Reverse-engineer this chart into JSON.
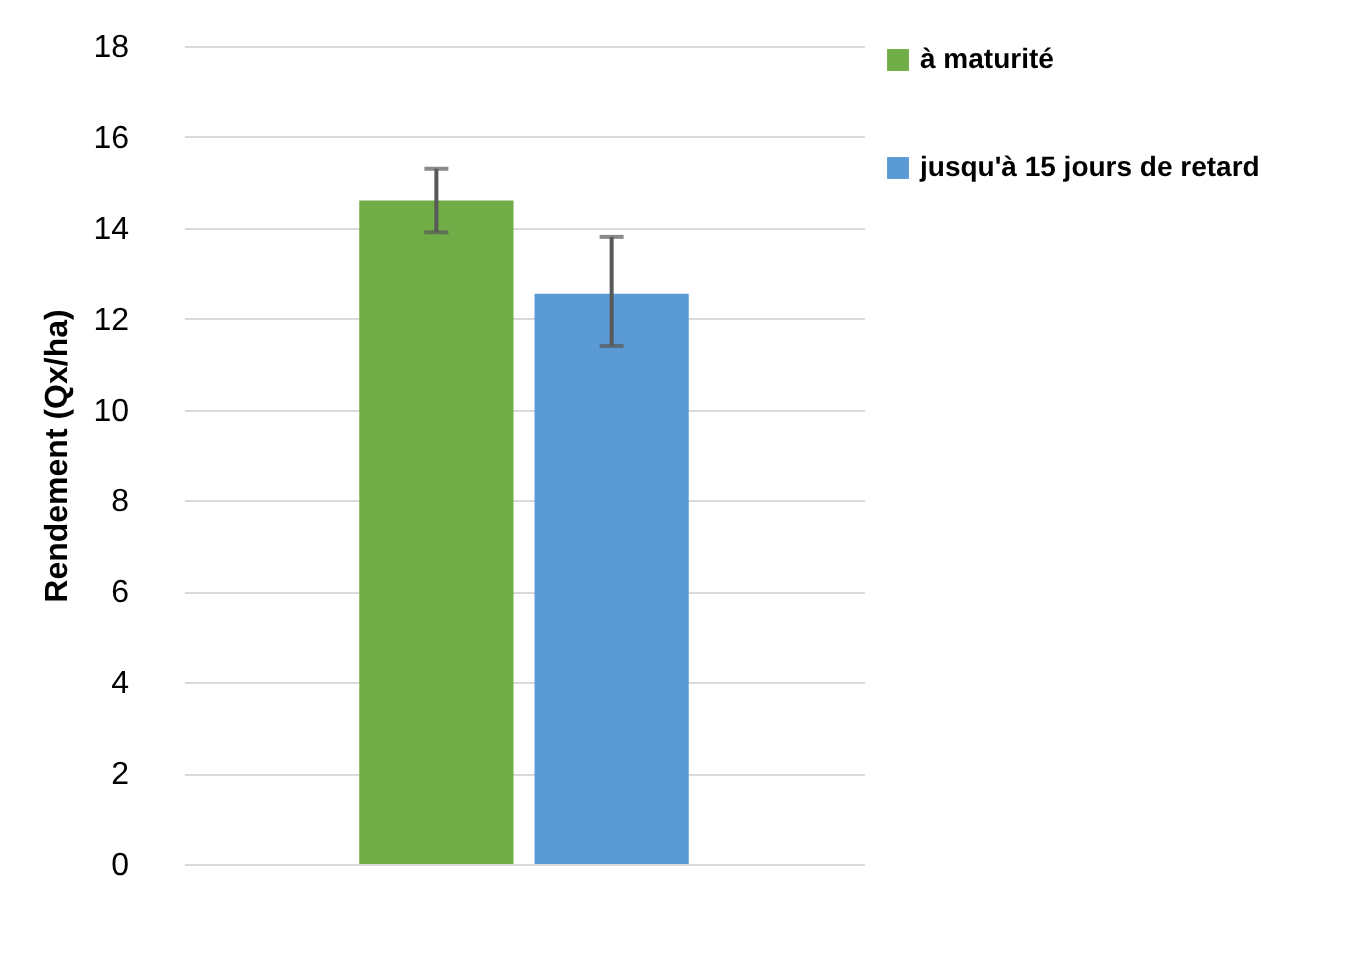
{
  "chart_data": {
    "type": "bar",
    "ylabel": "Rendement (Qx/ha)",
    "categories": [
      null
    ],
    "series": [
      {
        "name": "à maturité",
        "color": "#70ad47",
        "values": [
          14.6
        ],
        "errors": [
          [
            13.9,
            15.3
          ]
        ]
      },
      {
        "name": "jusqu'à 15 jours de retard",
        "color": "#5b9bd5",
        "values": [
          12.55
        ],
        "errors": [
          [
            11.4,
            13.8
          ]
        ]
      }
    ],
    "ylim": [
      0,
      18
    ],
    "yticks": [
      0,
      2,
      4,
      6,
      8,
      10,
      12,
      14,
      16,
      18
    ],
    "grid": "y",
    "legend": "right",
    "tick_labels": "y"
  }
}
